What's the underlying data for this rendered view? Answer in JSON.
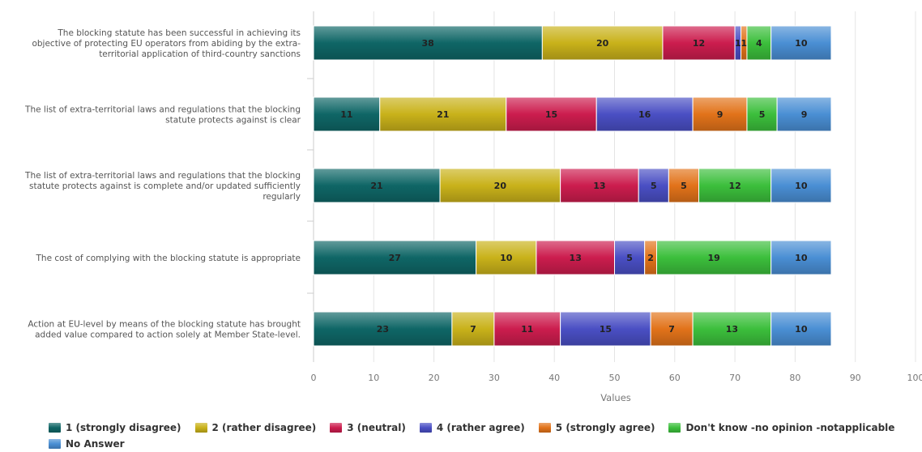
{
  "chart_data": {
    "type": "bar",
    "orientation": "horizontal",
    "stacked": true,
    "categories": [
      [
        "The blocking statute has been successful in achieving its",
        "objective of protecting EU operators from abiding by the extra-",
        "territorial application of third-country sanctions"
      ],
      [
        "The list of extra-territorial laws and regulations that the blocking",
        "statute protects against is clear"
      ],
      [
        "The list of extra-territorial laws and regulations that the blocking",
        "statute protects against is complete and/or updated sufficiently",
        "regularly"
      ],
      [
        "The cost of complying with the blocking statute is appropriate"
      ],
      [
        "Action at EU-level by means of the blocking statute has brought",
        "added value compared to action solely at Member State-level."
      ]
    ],
    "series": [
      {
        "name": "1 (strongly disagree)",
        "color": "#0f6666",
        "values": [
          38,
          11,
          21,
          27,
          23
        ]
      },
      {
        "name": "2 (rather disagree)",
        "color": "#c9b21a",
        "values": [
          20,
          21,
          20,
          10,
          7
        ]
      },
      {
        "name": "3 (neutral)",
        "color": "#cc1d4e",
        "values": [
          12,
          15,
          13,
          13,
          11
        ]
      },
      {
        "name": "4 (rather agree)",
        "color": "#4a4fc4",
        "values": [
          1,
          16,
          5,
          5,
          15
        ]
      },
      {
        "name": "5 (strongly agree)",
        "color": "#e2731a",
        "values": [
          1,
          9,
          5,
          2,
          7
        ]
      },
      {
        "name": "Don't know -no opinion -notapplicable",
        "color": "#3cbf3c",
        "values": [
          4,
          5,
          12,
          19,
          13
        ]
      },
      {
        "name": "No Answer",
        "color": "#4a8fd4",
        "values": [
          10,
          9,
          10,
          10,
          10
        ]
      }
    ],
    "xlabel": "Values",
    "ylabel": "",
    "xlim": [
      0,
      100
    ],
    "xticks": [
      0,
      10,
      20,
      30,
      40,
      50,
      60,
      70,
      80,
      90,
      100
    ],
    "grid": true,
    "legend": "bottom"
  }
}
